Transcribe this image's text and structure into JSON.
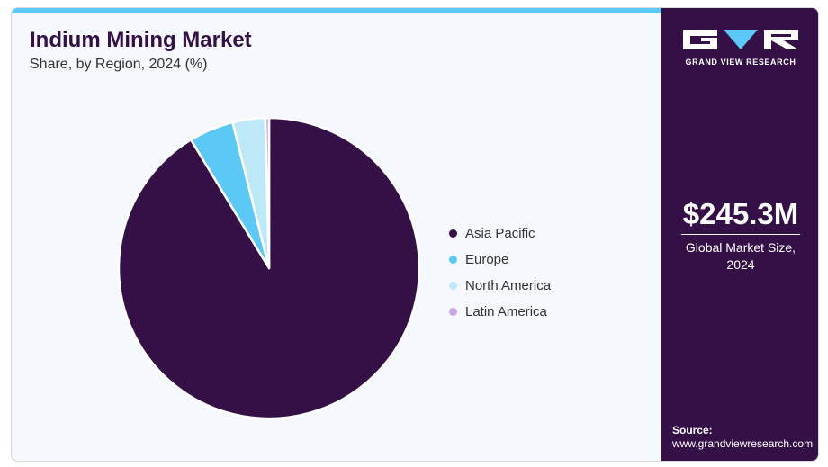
{
  "header": {
    "title": "Indium Mining Market",
    "subtitle": "Share, by Region, 2024 (%)"
  },
  "chart_data": {
    "type": "pie",
    "title": "Indium Mining Market",
    "subtitle": "Share, by Region, 2024 (%)",
    "legend_position": "right",
    "series": [
      {
        "name": "Asia Pacific",
        "value": 91.3,
        "color": "#341047"
      },
      {
        "name": "Europe",
        "value": 4.8,
        "color": "#5bc8f5"
      },
      {
        "name": "North America",
        "value": 3.5,
        "color": "#bde8f8"
      },
      {
        "name": "Latin America",
        "value": 0.4,
        "color": "#c9a8e6"
      }
    ]
  },
  "side_panel": {
    "brand_name": "GRAND VIEW RESEARCH",
    "market_value": "$245.3M",
    "market_label": "Global Market Size, 2024",
    "source_heading": "Source:",
    "source_url": "www.grandviewresearch.com"
  },
  "colors": {
    "accent": "#5bc8f5",
    "brand": "#341047",
    "background": "#f5f8fc"
  }
}
